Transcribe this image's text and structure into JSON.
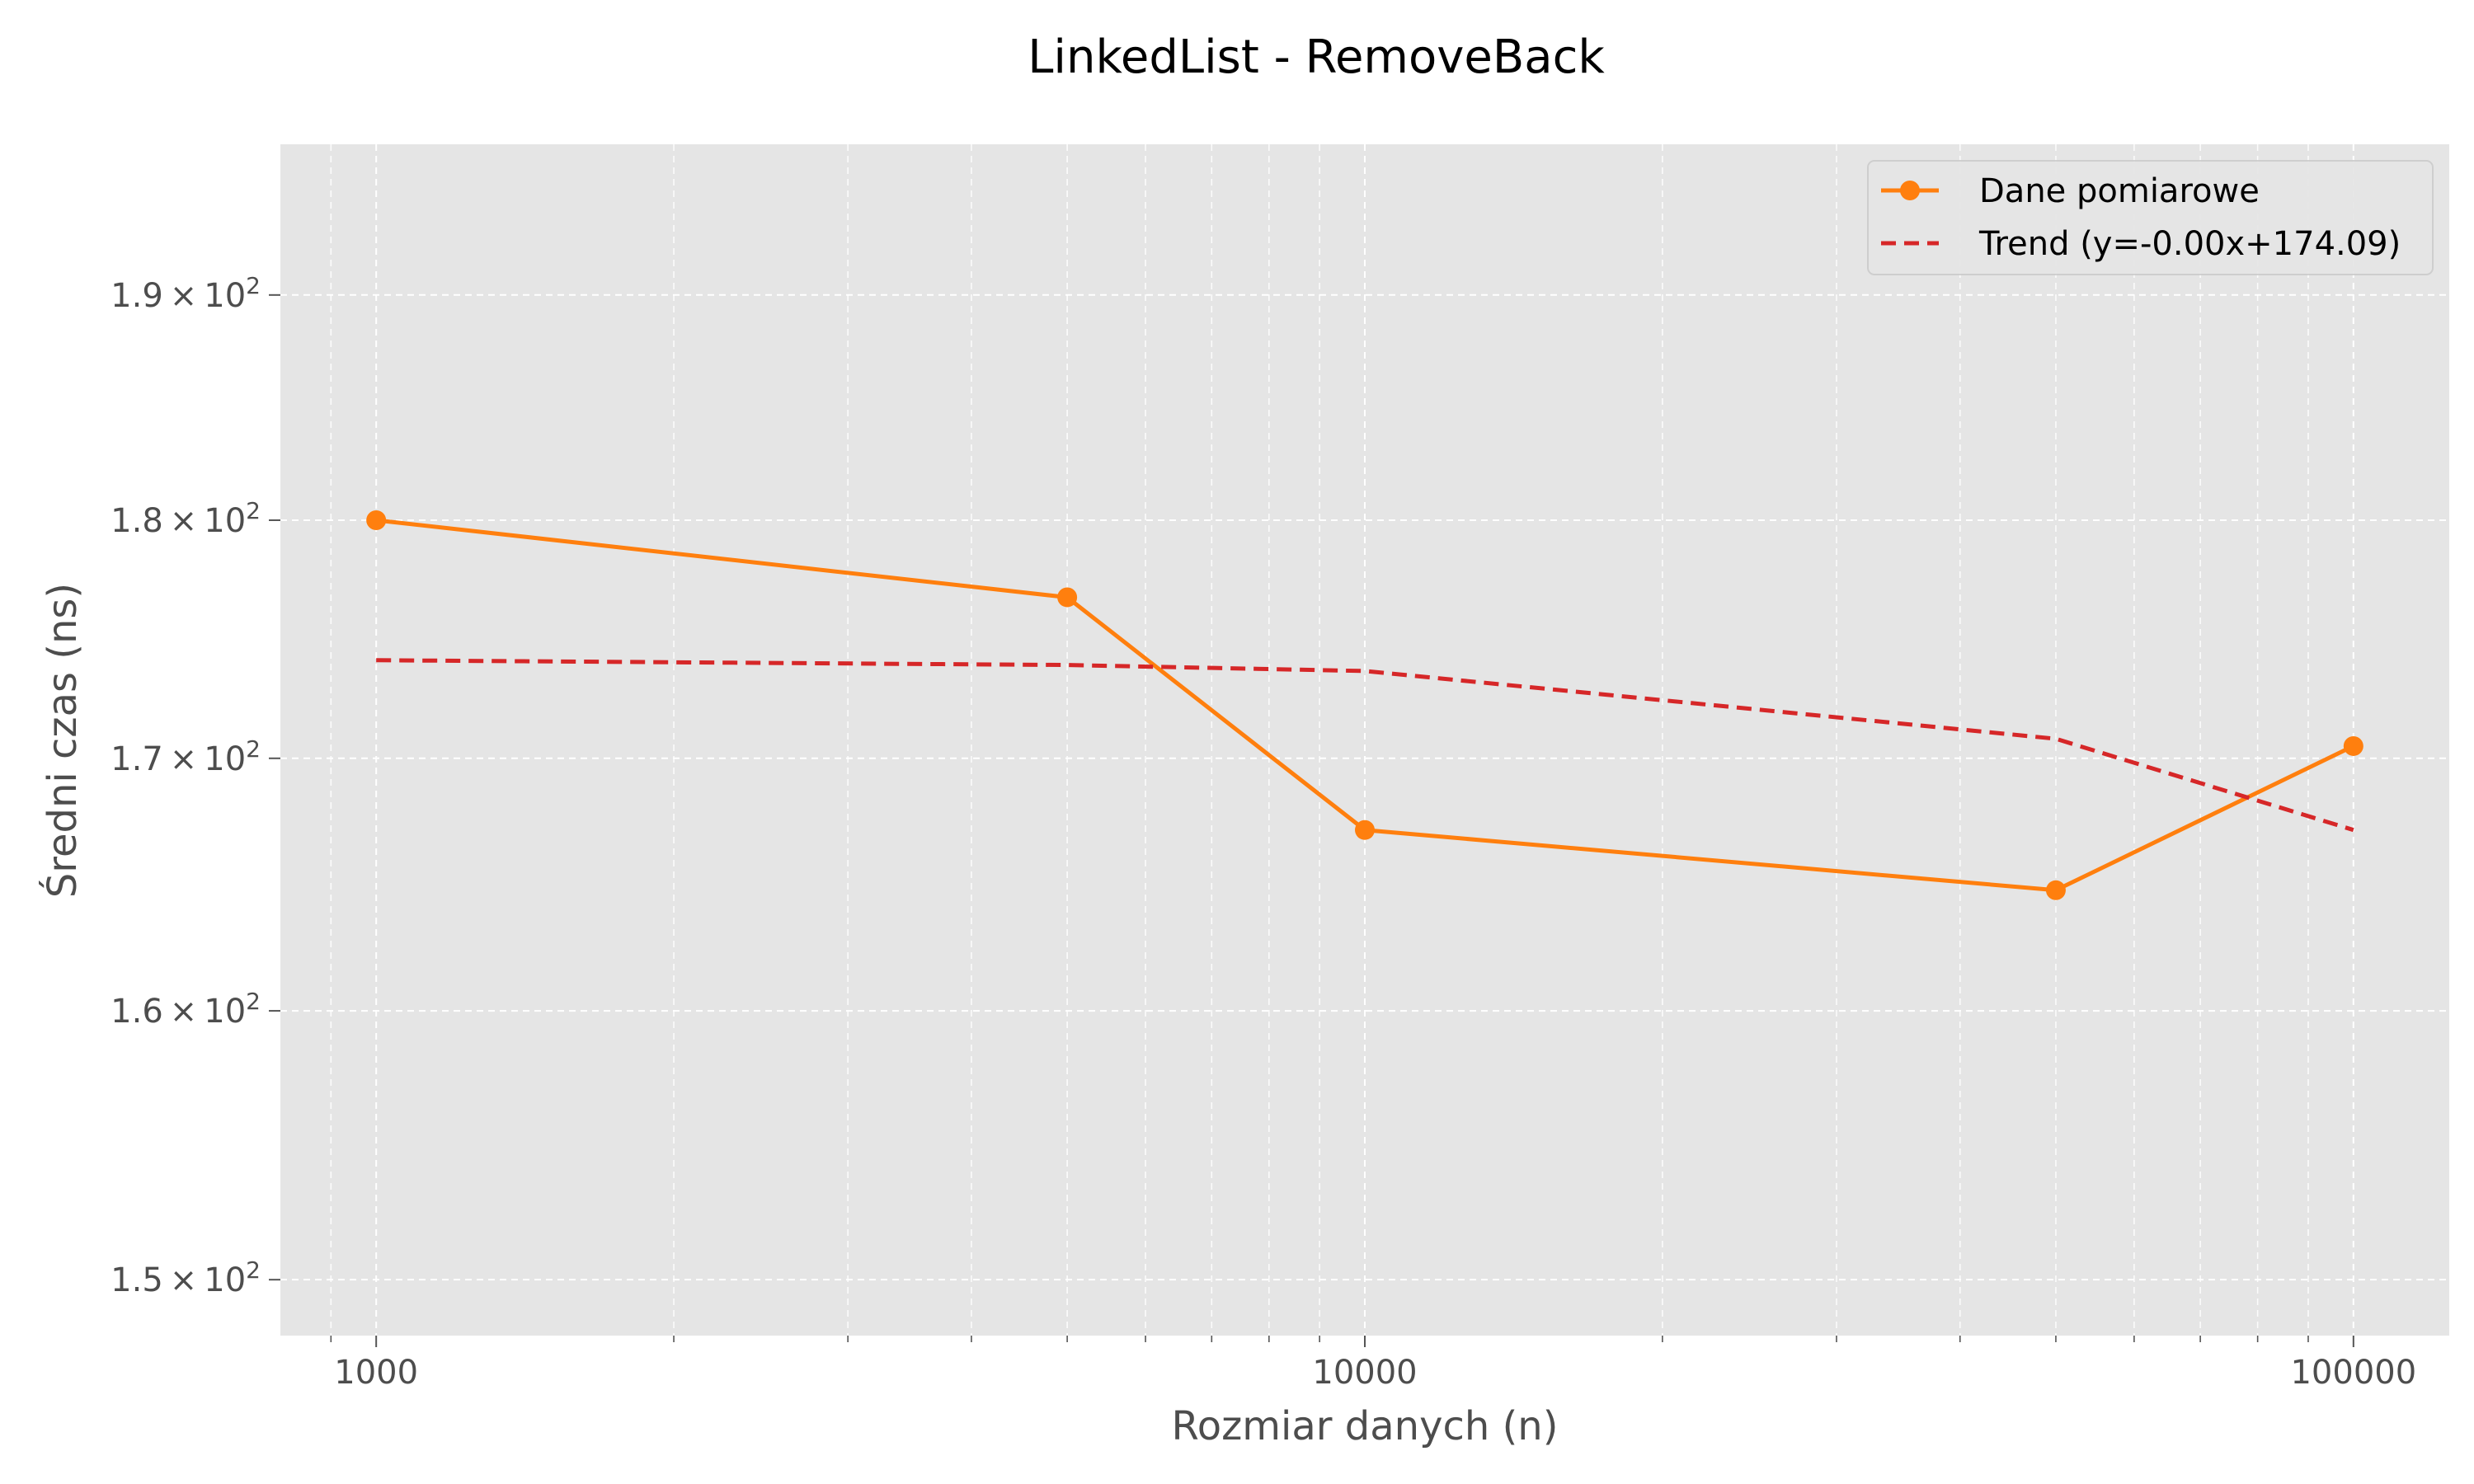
{
  "chart_data": {
    "type": "line",
    "title": "LinkedList - RemoveBack",
    "xlabel": "Rozmiar danych (n)",
    "ylabel": "Średni czas (ns)",
    "x_scale": "log",
    "y_scale": "log",
    "xlim": [
      800,
      125000
    ],
    "ylim": [
      148,
      197
    ],
    "x_ticks": [
      {
        "value": 1000,
        "label": "1000"
      },
      {
        "value": 10000,
        "label": "10000"
      },
      {
        "value": 100000,
        "label": "100000"
      }
    ],
    "y_ticks": [
      {
        "value": 150,
        "mantissa": "1.5"
      },
      {
        "value": 160,
        "mantissa": "1.6"
      },
      {
        "value": 170,
        "mantissa": "1.7"
      },
      {
        "value": 180,
        "mantissa": "1.8"
      },
      {
        "value": 190,
        "mantissa": "1.9"
      }
    ],
    "y_tick_format": {
      "times": "×",
      "base": "10",
      "exponent": "2"
    },
    "grid": true,
    "legend_position": "top-right",
    "series": [
      {
        "name": "Dane pomiarowe",
        "style": "solid-markers",
        "color": "#ff7f0e",
        "x": [
          1000,
          5000,
          10000,
          50000,
          100000
        ],
        "y": [
          180.0,
          176.7,
          167.1,
          164.7,
          170.5
        ]
      },
      {
        "name": "Trend (y=-0.00x+174.09)",
        "style": "dashed",
        "color": "#d62728",
        "x": [
          1000,
          5000,
          10000,
          50000,
          100000
        ],
        "y": [
          174.05,
          173.85,
          173.6,
          170.8,
          167.1
        ]
      }
    ]
  },
  "colors": {
    "plot_background": "#e5e5e5",
    "grid": "#ffffff",
    "page_background": "#ffffff"
  }
}
